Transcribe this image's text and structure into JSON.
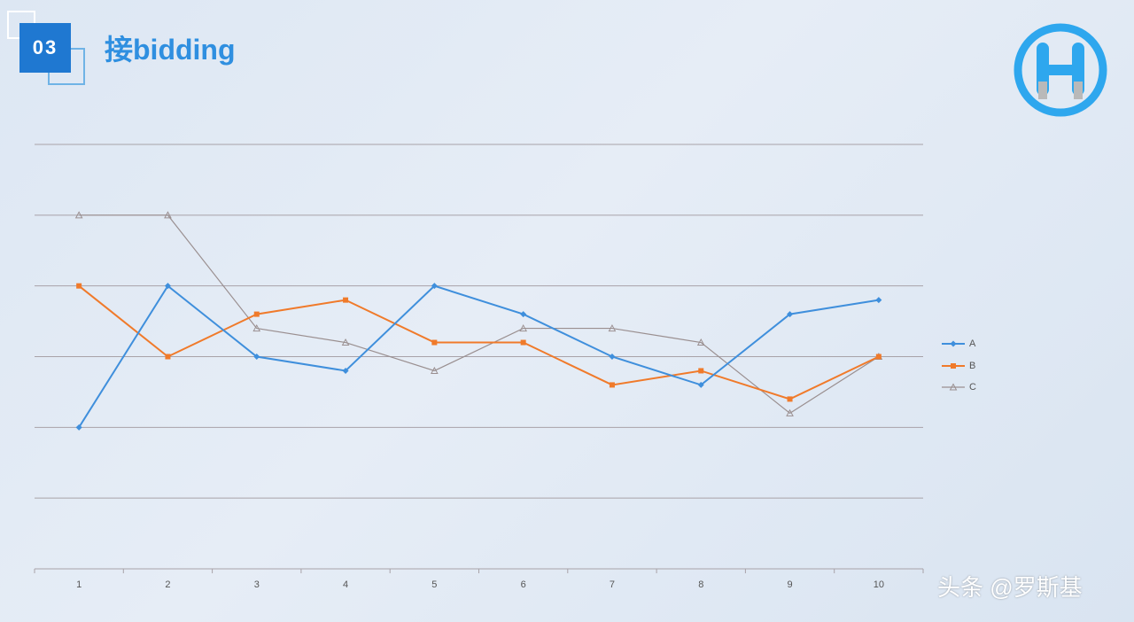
{
  "header": {
    "badge_number": "03",
    "title": "接bidding"
  },
  "logo": {
    "name": "w-logo-icon",
    "color": "#2ea7ee"
  },
  "watermark": {
    "text": "头条 @罗斯基"
  },
  "chart_data": {
    "type": "line",
    "categories": [
      "1",
      "2",
      "3",
      "4",
      "5",
      "6",
      "7",
      "8",
      "9",
      "10"
    ],
    "series": [
      {
        "name": "A",
        "color": "#3f8fdc",
        "marker": "diamond",
        "values": [
          0,
          2,
          1,
          0.8,
          2,
          1.6,
          1,
          0.6,
          1.6,
          1.8
        ]
      },
      {
        "name": "B",
        "color": "#f07a2a",
        "marker": "square",
        "values": [
          2,
          1,
          1.6,
          1.8,
          1.2,
          1.2,
          0.6,
          0.8,
          0.4,
          1
        ]
      },
      {
        "name": "C",
        "color": "#9a8f90",
        "marker": "triangle",
        "values": [
          3,
          3,
          1.4,
          1.2,
          0.8,
          1.4,
          1.4,
          1.2,
          0.2,
          1
        ]
      }
    ],
    "ylim": [
      -2,
      4
    ],
    "grid": true,
    "legend_position": "right"
  }
}
